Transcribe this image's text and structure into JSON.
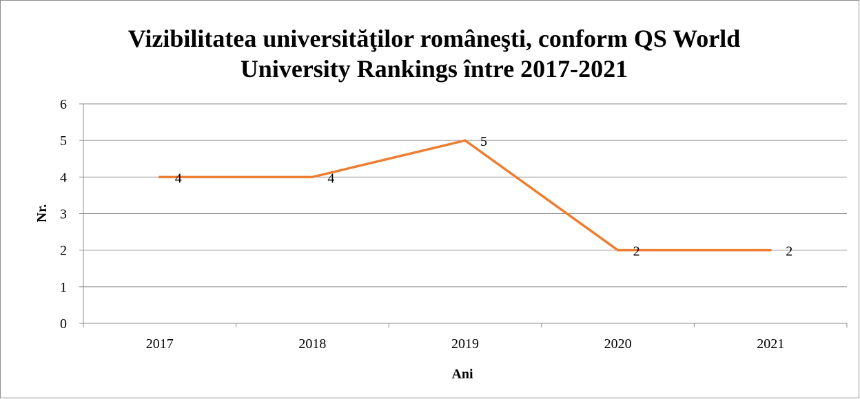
{
  "chart_data": {
    "type": "line",
    "title_lines": [
      "Vizibilitatea universităţilor româneşti, conform QS World",
      "University Rankings între 2017-2021"
    ],
    "xlabel": "Ani",
    "ylabel": "Nr.",
    "categories": [
      "2017",
      "2018",
      "2019",
      "2020",
      "2021"
    ],
    "series": [
      {
        "values": [
          4,
          4,
          5,
          2,
          2
        ],
        "color": "#ED7D31"
      }
    ],
    "data_labels": [
      "4",
      "4",
      "5",
      "2",
      "2"
    ],
    "ylim": [
      0,
      6
    ],
    "yticks": [
      "0",
      "1",
      "2",
      "3",
      "4",
      "5",
      "6"
    ],
    "grid": true,
    "legend": "none"
  }
}
